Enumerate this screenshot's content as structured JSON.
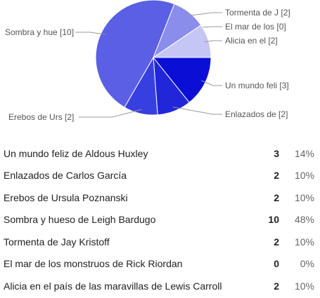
{
  "chart_data": {
    "type": "pie",
    "slices": [
      {
        "label": "Un mundo feli [3]",
        "value": 3,
        "color": "#0b0fd6"
      },
      {
        "label": "Enlazados de  [2]",
        "value": 2,
        "color": "#2127d8"
      },
      {
        "label": "Erebos de Urs [2]",
        "value": 2,
        "color": "#383fe0"
      },
      {
        "label": "Sombra y hue [10]",
        "value": 10,
        "color": "#5a5fe4"
      },
      {
        "label": "Tormenta de J [2]",
        "value": 2,
        "color": "#8a8dec"
      },
      {
        "label": "El mar de los [0]",
        "value": 0,
        "color": "#a5a7f0"
      },
      {
        "label": "Alicia en el  [2]",
        "value": 2,
        "color": "#c5c6f6"
      }
    ]
  },
  "table": {
    "rows": [
      {
        "label": "Un mundo feliz de Aldous Huxley",
        "count": "3",
        "percent": "14%"
      },
      {
        "label": "Enlazados de Carlos García",
        "count": "2",
        "percent": "10%"
      },
      {
        "label": "Erebos de Ursula Poznanski",
        "count": "2",
        "percent": "10%"
      },
      {
        "label": "Sombra y hueso de Leigh Bardugo",
        "count": "10",
        "percent": "48%"
      },
      {
        "label": "Tormenta de Jay Kristoff",
        "count": "2",
        "percent": "10%"
      },
      {
        "label": "El mar de los monstruos de Rick Riordan",
        "count": "0",
        "percent": "0%"
      },
      {
        "label": "Alicia en el país de las maravillas de Lewis Carroll",
        "count": "2",
        "percent": "10%"
      }
    ]
  }
}
